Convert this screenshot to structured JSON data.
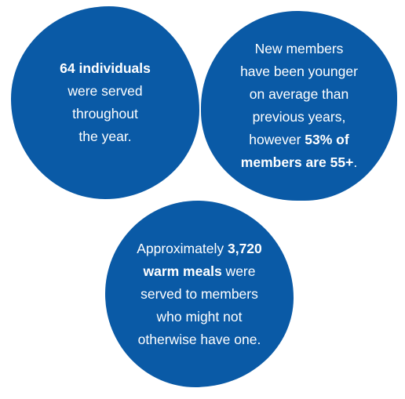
{
  "accent_color": "#0a5aa6",
  "stats": [
    {
      "lines": [
        [
          {
            "t": "64 individuals",
            "b": true
          }
        ],
        [
          {
            "t": "were served",
            "b": false
          }
        ],
        [
          {
            "t": "throughout",
            "b": false
          }
        ],
        [
          {
            "t": "the year.",
            "b": false
          }
        ]
      ]
    },
    {
      "lines": [
        [
          {
            "t": "New members",
            "b": false
          }
        ],
        [
          {
            "t": "have been younger",
            "b": false
          }
        ],
        [
          {
            "t": "on average than",
            "b": false
          }
        ],
        [
          {
            "t": "previous years,",
            "b": false
          }
        ],
        [
          {
            "t": "however ",
            "b": false
          },
          {
            "t": "53% of",
            "b": true
          }
        ],
        [
          {
            "t": "members are 55+",
            "b": true
          },
          {
            "t": ".",
            "b": false
          }
        ]
      ]
    },
    {
      "lines": [
        [
          {
            "t": "Approximately ",
            "b": false
          },
          {
            "t": "3,720",
            "b": true
          }
        ],
        [
          {
            "t": "warm meals",
            "b": true
          },
          {
            "t": " were",
            "b": false
          }
        ],
        [
          {
            "t": "served to members",
            "b": false
          }
        ],
        [
          {
            "t": "who might not",
            "b": false
          }
        ],
        [
          {
            "t": "otherwise have one.",
            "b": false
          }
        ]
      ]
    }
  ]
}
